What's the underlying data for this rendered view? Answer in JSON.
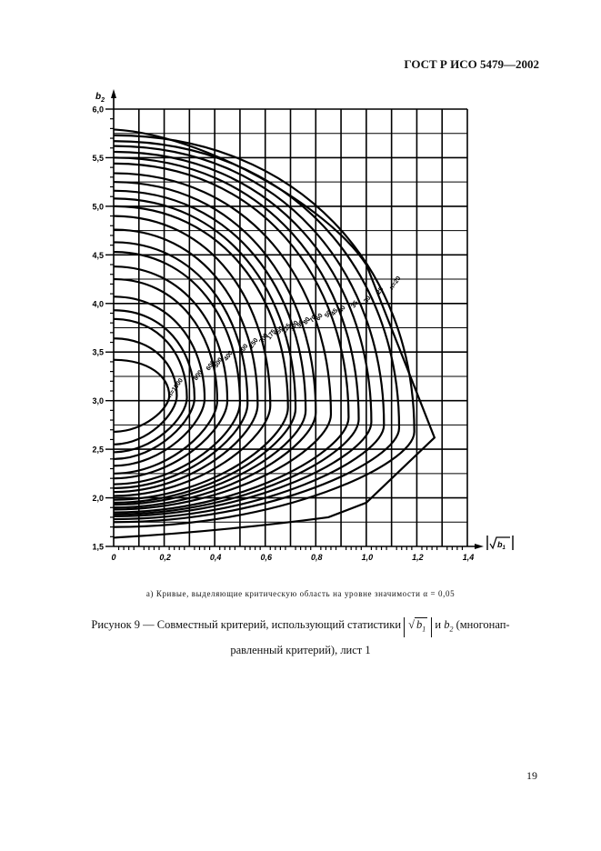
{
  "page": {
    "header": "ГОСТ Р ИСО 5479—2002",
    "page_number": "19"
  },
  "figure": {
    "subcaption": "а) Кривые, выделяющие критическую область на уровне значимости α = 0,05",
    "caption_part1": "Рисунок 9 — Совместный критерий, использующий статистики",
    "caption_sqrt_symbol": "√",
    "caption_sqrt_arg": "b",
    "caption_sqrt_sub": "1",
    "caption_and": "и",
    "caption_b2": "b",
    "caption_b2_sub": "2",
    "caption_part2": "(многонап-",
    "caption_line2": "равленный критерий), лист 1"
  },
  "chart_data": {
    "type": "line",
    "title": "Кривые, выделяющие критическую область на уровне значимости α = 0,05",
    "xlabel": "|√b1|",
    "ylabel": "b2",
    "xlim": [
      0,
      1.4
    ],
    "ylim": [
      1.5,
      6.0
    ],
    "grid": true,
    "x_ticks": [
      "0",
      "0,2",
      "0,4",
      "0,6",
      "0,8",
      "1,0",
      "1,2",
      "1,4"
    ],
    "y_ticks": [
      "1,5",
      "2,0",
      "2,5",
      "3,0",
      "3,5",
      "4,0",
      "4,5",
      "5,0",
      "5,5",
      "6,0"
    ],
    "legend_position": "inline curve labels",
    "curve_label_prefix": "n=",
    "series": [
      {
        "name": "n=1000",
        "x_max": 0.22,
        "y_top": 3.42,
        "y_bottom": 2.68,
        "y_mid": 3.05
      },
      {
        "name": "n=800",
        "x_max": 0.25,
        "y_top": 3.64,
        "y_bottom": 2.55,
        "y_mid": 3.05
      },
      {
        "name": "n=600",
        "x_max": 0.29,
        "y_top": 3.84,
        "y_bottom": 2.47,
        "y_mid": 3.03
      },
      {
        "name": "n=500",
        "x_max": 0.32,
        "y_top": 3.93,
        "y_bottom": 2.4,
        "y_mid": 3.03
      },
      {
        "name": "n=400",
        "x_max": 0.36,
        "y_top": 4.07,
        "y_bottom": 2.33,
        "y_mid": 3.02
      },
      {
        "name": "n=300",
        "x_max": 0.41,
        "y_top": 4.25,
        "y_bottom": 2.25,
        "y_mid": 3.0
      },
      {
        "name": "n=250",
        "x_max": 0.45,
        "y_top": 4.38,
        "y_bottom": 2.2,
        "y_mid": 3.0
      },
      {
        "name": "n=200",
        "x_max": 0.5,
        "y_top": 4.53,
        "y_bottom": 2.14,
        "y_mid": 2.98
      },
      {
        "name": "n=175",
        "x_max": 0.53,
        "y_top": 4.63,
        "y_bottom": 2.1,
        "y_mid": 2.97
      },
      {
        "name": "n=150",
        "x_max": 0.57,
        "y_top": 4.76,
        "y_bottom": 2.06,
        "y_mid": 2.96
      },
      {
        "name": "n=125",
        "x_max": 0.62,
        "y_top": 4.9,
        "y_bottom": 2.02,
        "y_mid": 2.95
      },
      {
        "name": "n=100",
        "x_max": 0.69,
        "y_top": 5.0,
        "y_bottom": 1.98,
        "y_mid": 2.93
      },
      {
        "name": "n=90",
        "x_max": 0.72,
        "y_top": 5.08,
        "y_bottom": 1.95,
        "y_mid": 2.92
      },
      {
        "name": "n=80",
        "x_max": 0.76,
        "y_top": 5.16,
        "y_bottom": 1.93,
        "y_mid": 2.9
      },
      {
        "name": "n=70",
        "x_max": 0.8,
        "y_top": 5.25,
        "y_bottom": 1.9,
        "y_mid": 2.88
      },
      {
        "name": "n=60",
        "x_max": 0.86,
        "y_top": 5.34,
        "y_bottom": 1.88,
        "y_mid": 2.86
      },
      {
        "name": "n=50",
        "x_max": 0.93,
        "y_top": 5.44,
        "y_bottom": 1.85,
        "y_mid": 2.83
      },
      {
        "name": "n=45",
        "x_max": 0.97,
        "y_top": 5.5,
        "y_bottom": 1.83,
        "y_mid": 2.81
      },
      {
        "name": "n=40",
        "x_max": 1.02,
        "y_top": 5.56,
        "y_bottom": 1.81,
        "y_mid": 2.78
      },
      {
        "name": "n=35",
        "x_max": 1.07,
        "y_top": 5.62,
        "y_bottom": 1.78,
        "y_mid": 2.75
      },
      {
        "name": "n=30",
        "x_max": 1.13,
        "y_top": 5.67,
        "y_bottom": 1.75,
        "y_mid": 2.72
      },
      {
        "name": "n=25",
        "x_max": 1.19,
        "y_top": 5.73,
        "y_bottom": 1.7,
        "y_mid": 2.68
      },
      {
        "name": "n=20",
        "x_max": 1.27,
        "y_top": 5.79,
        "y_bottom": 1.59,
        "y_mid": 2.62
      }
    ],
    "label_positions": [
      {
        "text": "n=1000",
        "x": 0.25,
        "y": 3.12
      },
      {
        "text": "800",
        "x": 0.34,
        "y": 3.25
      },
      {
        "text": "600",
        "x": 0.39,
        "y": 3.35
      },
      {
        "text": "500",
        "x": 0.42,
        "y": 3.38
      },
      {
        "text": "400",
        "x": 0.46,
        "y": 3.45
      },
      {
        "text": "300",
        "x": 0.52,
        "y": 3.52
      },
      {
        "text": "250",
        "x": 0.56,
        "y": 3.58
      },
      {
        "text": "200",
        "x": 0.6,
        "y": 3.63
      },
      {
        "text": "175",
        "x": 0.63,
        "y": 3.67
      },
      {
        "text": "150",
        "x": 0.66,
        "y": 3.7
      },
      {
        "text": "125",
        "x": 0.69,
        "y": 3.73
      },
      {
        "text": "100",
        "x": 0.72,
        "y": 3.76
      },
      {
        "text": "90",
        "x": 0.745,
        "y": 3.78
      },
      {
        "text": "80",
        "x": 0.77,
        "y": 3.81
      },
      {
        "text": "70",
        "x": 0.795,
        "y": 3.83
      },
      {
        "text": "60",
        "x": 0.82,
        "y": 3.85
      },
      {
        "text": "50",
        "x": 0.855,
        "y": 3.88
      },
      {
        "text": "45",
        "x": 0.88,
        "y": 3.9
      },
      {
        "text": "40",
        "x": 0.91,
        "y": 3.93
      },
      {
        "text": "35",
        "x": 0.96,
        "y": 3.98
      },
      {
        "text": "30",
        "x": 1.01,
        "y": 4.03
      },
      {
        "text": "25",
        "x": 1.06,
        "y": 4.12
      },
      {
        "text": "n=20",
        "x": 1.12,
        "y": 4.2
      }
    ]
  }
}
